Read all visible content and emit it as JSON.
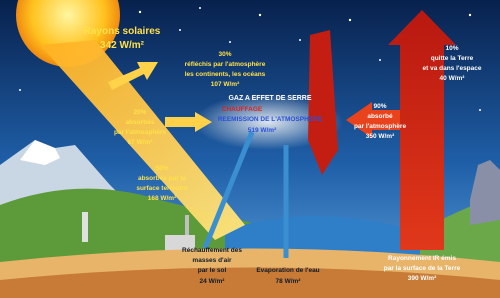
{
  "solar": {
    "title": "Rayons solaires",
    "value": "342 W/m²"
  },
  "nodes": [
    {
      "lines": [
        "30%",
        "réfléchis par l'atmosphère",
        "les continents, les océans",
        "107 W/m²"
      ]
    },
    {
      "lines": [
        "20%",
        "absorbés",
        "par l'atmosphère",
        "67 W/m²"
      ]
    },
    {
      "lines": [
        "50%",
        "absorbés par la",
        "surface terrestre",
        "168 W/m²"
      ]
    },
    {
      "lines": [
        "GAZ A EFFET DE SERRE",
        "CHAUFFAGE",
        "REEMISSION DE L'ATMOSPHERE",
        "519 W/m²"
      ]
    },
    {
      "lines": [
        "90%",
        "absorbé",
        "par l'atmosphère",
        "350 W/m²"
      ]
    },
    {
      "lines": [
        "10%",
        "quitte la Terre",
        "et va dans l'espace",
        "40 W/m²"
      ]
    },
    {
      "lines": [
        "Réchauffement des",
        "masses d'air",
        "par le sol",
        "24 W/m²"
      ]
    },
    {
      "lines": [
        "Evaporation de l'eau",
        "78 W/m²"
      ]
    },
    {
      "lines": [
        "Rayonnement IR émis",
        "par la surface de la Terre",
        "390 W/m²"
      ]
    }
  ]
}
